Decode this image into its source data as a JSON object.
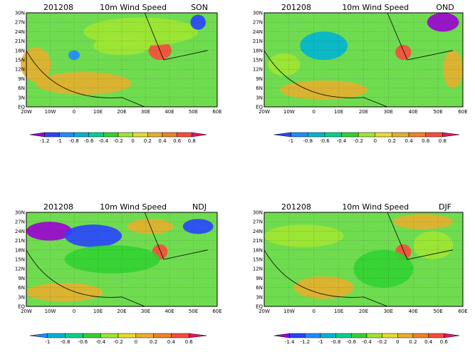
{
  "y_labels": [
    "30N",
    "27N",
    "24N",
    "21N",
    "18N",
    "15N",
    "12N",
    "9N",
    "6N",
    "3N",
    "EQ"
  ],
  "x_labels": [
    "20W",
    "10W",
    "0",
    "10E",
    "20E",
    "30E",
    "40E",
    "50E",
    "60E"
  ],
  "panels": [
    {
      "date": "201208",
      "variable": "10m Wind Speed",
      "season": "SON",
      "colorbar": [
        "-1.2",
        "-1",
        "-0.8",
        "-0.6",
        "-0.4",
        "-0.2",
        "0",
        "0.2",
        "0.4",
        "0.6",
        "0.8"
      ]
    },
    {
      "date": "201208",
      "variable": "10m Wind Speed",
      "season": "OND",
      "colorbar": [
        "-1",
        "-0.8",
        "-0.6",
        "-0.4",
        "-0.2",
        "0",
        "0.2",
        "0.4",
        "0.6",
        "0.8"
      ]
    },
    {
      "date": "201208",
      "variable": "10m Wind Speed",
      "season": "NDJ",
      "colorbar": [
        "-1",
        "-0.8",
        "-0.6",
        "-0.4",
        "-0.2",
        "0",
        "0.2",
        "0.4",
        "0.6"
      ]
    },
    {
      "date": "201208",
      "variable": "10m Wind Speed",
      "season": "DJF",
      "colorbar": [
        "-1.4",
        "-1.2",
        "-1",
        "-0.8",
        "-0.6",
        "-0.4",
        "-0.2",
        "0",
        "0.2",
        "0.4",
        "0.6"
      ]
    }
  ]
}
